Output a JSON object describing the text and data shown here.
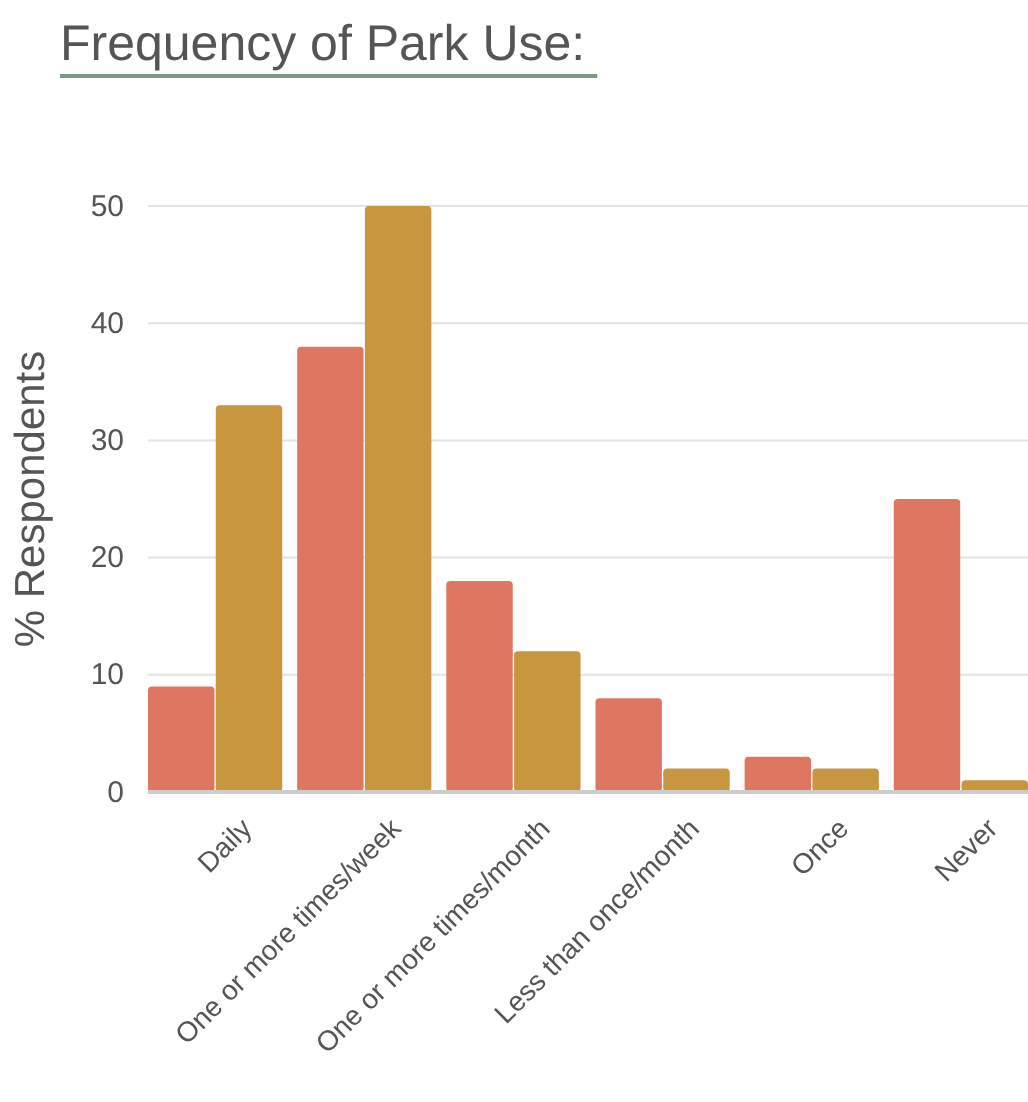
{
  "chart_data": {
    "type": "bar",
    "title": "Frequency of Park Use:",
    "ylabel": "% Respondents",
    "categories": [
      "Daily",
      "One or more times/week",
      "One or more times/month",
      "Less than once/month",
      "Once",
      "Never"
    ],
    "series": [
      {
        "color": "#df7760",
        "values": [
          9,
          38,
          18,
          8,
          3,
          25
        ]
      },
      {
        "color": "#c8963e",
        "values": [
          33,
          50,
          12,
          2,
          2,
          1
        ]
      }
    ],
    "ylim": [
      0,
      50
    ],
    "yticks": [
      0,
      10,
      20,
      30,
      40,
      50
    ],
    "grid": "y"
  }
}
